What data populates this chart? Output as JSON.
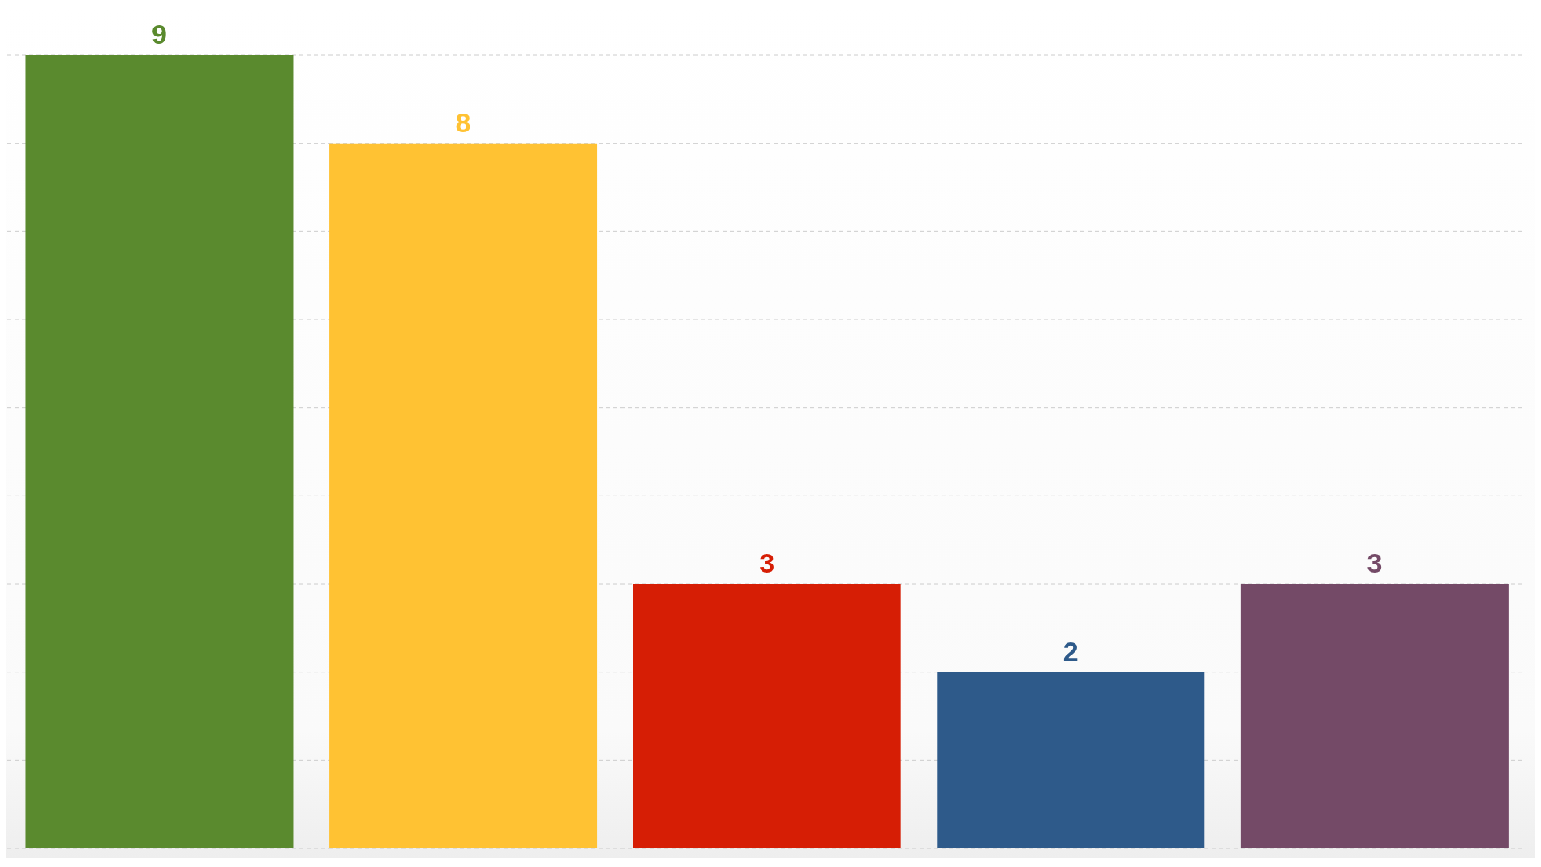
{
  "chart_data": {
    "type": "bar",
    "categories": [
      null,
      null,
      null,
      null,
      null
    ],
    "values": [
      9,
      8,
      3,
      2,
      3
    ],
    "colors": [
      "#5a8a2e",
      "#ffc233",
      "#d61e05",
      "#2e5a8a",
      "#744a67"
    ],
    "grid": "y",
    "data_labels": true
  }
}
